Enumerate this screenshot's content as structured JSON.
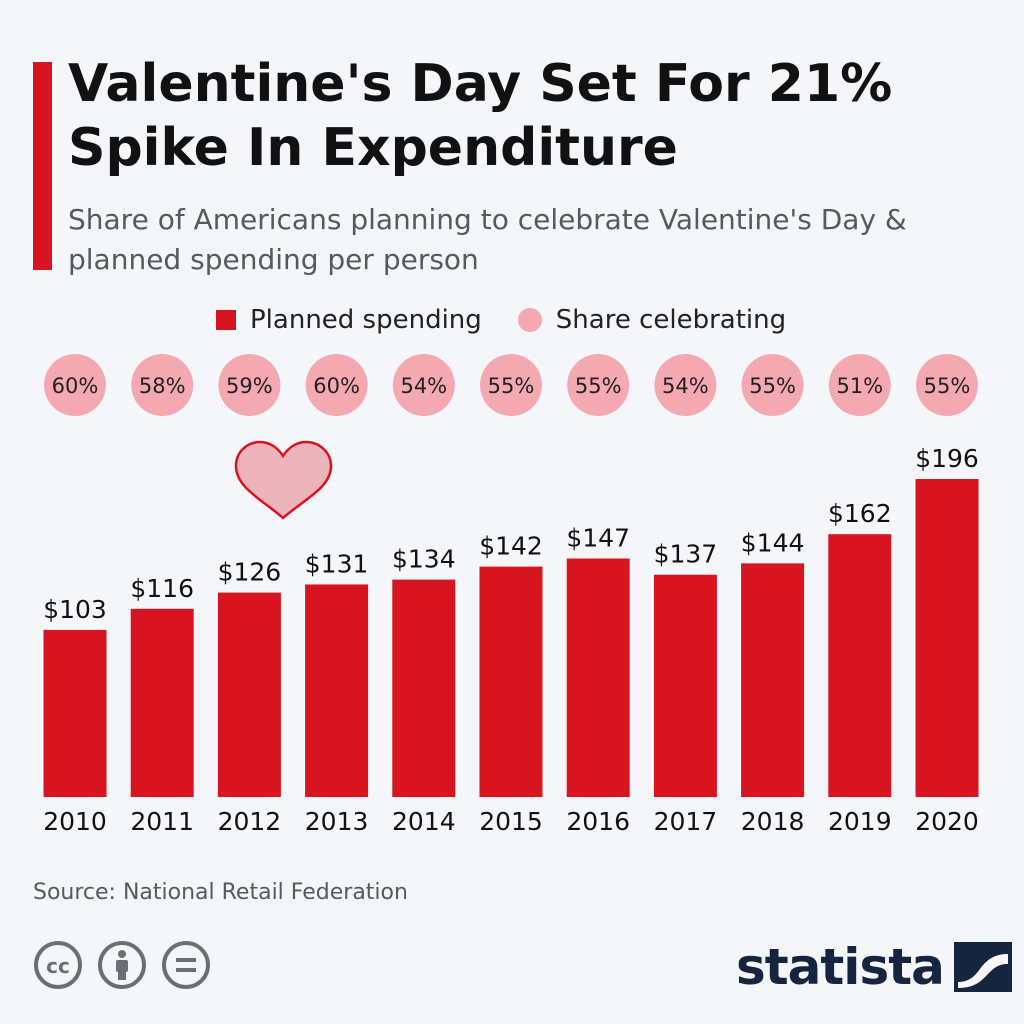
{
  "header": {
    "title": "Valentine's Day Set For 21% Spike In Expenditure",
    "subtitle": "Share of Americans planning to celebrate Valentine's Day & planned spending per person"
  },
  "legend": {
    "spending_label": "Planned spending",
    "share_label": "Share celebrating"
  },
  "footer": {
    "source": "Source: National Retail Federation",
    "brand": "statista"
  },
  "colors": {
    "bar": "#d7141f",
    "circle": "#f4a8b0",
    "heart_fill": "#eeb4bb",
    "heart_stroke": "#d7141f",
    "brand": "#15253f"
  },
  "chart_data": {
    "type": "bar",
    "title": "Valentine's Day Set For 21% Spike In Expenditure",
    "xlabel": "",
    "ylabel": "",
    "ylim": [
      0,
      196
    ],
    "categories": [
      "2010",
      "2011",
      "2012",
      "2013",
      "2014",
      "2015",
      "2016",
      "2017",
      "2018",
      "2019",
      "2020"
    ],
    "series": [
      {
        "name": "Planned spending",
        "values": [
          103,
          116,
          126,
          131,
          134,
          142,
          147,
          137,
          144,
          162,
          196
        ],
        "labels": [
          "$103",
          "$116",
          "$126",
          "$131",
          "$134",
          "$142",
          "$147",
          "$137",
          "$144",
          "$162",
          "$196"
        ]
      },
      {
        "name": "Share celebrating",
        "values": [
          60,
          58,
          59,
          60,
          54,
          55,
          55,
          54,
          55,
          51,
          55
        ],
        "labels": [
          "60%",
          "58%",
          "59%",
          "60%",
          "54%",
          "55%",
          "55%",
          "54%",
          "55%",
          "51%",
          "55%"
        ]
      }
    ],
    "grid": false,
    "legend_position": "top"
  }
}
